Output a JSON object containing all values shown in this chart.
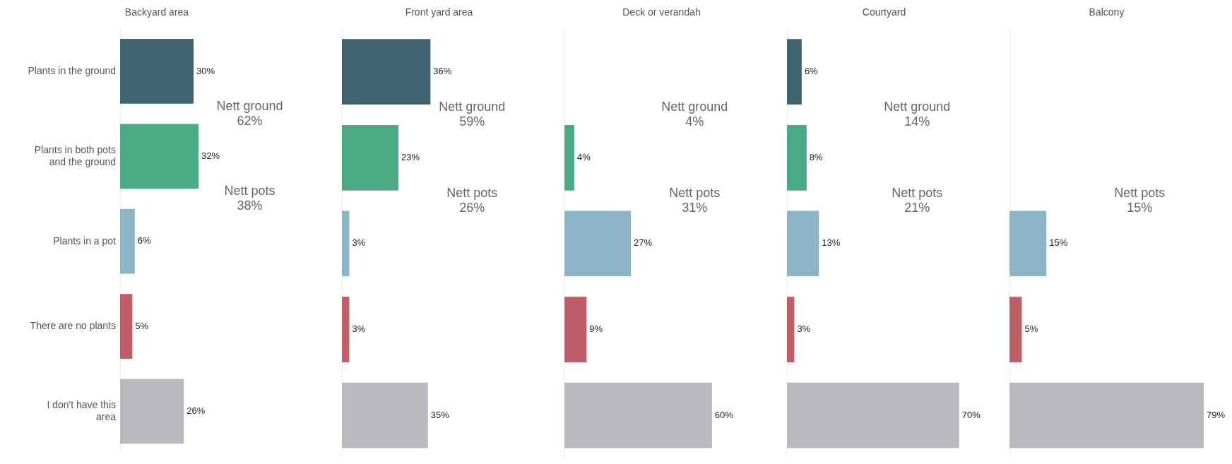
{
  "chart_data": [
    {
      "type": "bar",
      "orientation": "horizontal",
      "title": "Backyard area",
      "categories": [
        "Plants in the ground",
        "Plants in both pots and the ground",
        "Plants in a pot",
        "There are no plants",
        "I don't have this area"
      ],
      "values": [
        30,
        32,
        6,
        5,
        26
      ],
      "value_labels": [
        "30%",
        "32%",
        "6%",
        "5%",
        "26%"
      ],
      "colors": [
        "#41636f",
        "#4aaa84",
        "#8cb6c6",
        "#bf5d69",
        "#b8babd"
      ],
      "tick_labels": "y",
      "legend": false,
      "grid": false,
      "annotations": [
        "Nett ground\n62%",
        "Nett pots\n38%"
      ]
    },
    {
      "type": "bar",
      "orientation": "horizontal",
      "title": "Front yard area",
      "categories": [
        null,
        null,
        null,
        null,
        null
      ],
      "values": [
        36,
        23,
        3,
        3,
        35
      ],
      "value_labels": [
        "36%",
        "23%",
        "3%",
        "3%",
        "35%"
      ],
      "colors": [
        "#41636f",
        "#4aaa84",
        "#8cb6c6",
        "#bf5d69",
        "#b8babd"
      ],
      "tick_labels": false,
      "legend": false,
      "grid": false,
      "annotations": [
        "Nett ground\n59%",
        "Nett pots\n26%"
      ]
    },
    {
      "type": "bar",
      "orientation": "horizontal",
      "title": "Deck or verandah",
      "categories": [
        null,
        null,
        null,
        null,
        null
      ],
      "values": [
        null,
        4,
        27,
        9,
        60
      ],
      "value_labels": [
        null,
        "4%",
        "27%",
        "9%",
        "60%"
      ],
      "colors": [
        "#41636f",
        "#4aaa84",
        "#8cb6c6",
        "#bf5d69",
        "#b8babd"
      ],
      "tick_labels": false,
      "legend": false,
      "grid": false,
      "annotations": [
        "Nett ground\n4%",
        "Nett pots\n31%"
      ]
    },
    {
      "type": "bar",
      "orientation": "horizontal",
      "title": "Courtyard",
      "categories": [
        null,
        null,
        null,
        null,
        null
      ],
      "values": [
        6,
        8,
        13,
        3,
        70
      ],
      "value_labels": [
        "6%",
        "8%",
        "13%",
        "3%",
        "70%"
      ],
      "colors": [
        "#41636f",
        "#4aaa84",
        "#8cb6c6",
        "#bf5d69",
        "#b8babd"
      ],
      "tick_labels": false,
      "legend": false,
      "grid": false,
      "annotations": [
        "Nett ground\n14%",
        "Nett pots\n21%"
      ]
    },
    {
      "type": "bar",
      "orientation": "horizontal",
      "title": "Balcony",
      "categories": [
        null,
        null,
        null,
        null,
        null
      ],
      "values": [
        null,
        null,
        15,
        5,
        79
      ],
      "value_labels": [
        null,
        null,
        "15%",
        "5%",
        "79%"
      ],
      "colors": [
        "#41636f",
        "#4aaa84",
        "#8cb6c6",
        "#bf5d69",
        "#b8babd"
      ],
      "tick_labels": false,
      "legend": false,
      "grid": false,
      "annotations": [
        "Nett pots\n15%"
      ]
    }
  ]
}
